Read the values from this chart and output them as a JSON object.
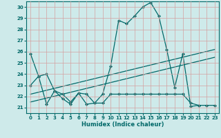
{
  "xlabel": "Humidex (Indice chaleur)",
  "bg_color": "#ceeaea",
  "grid_color": "#d4a0a0",
  "line_color": "#006868",
  "xlim": [
    -0.5,
    23.5
  ],
  "ylim": [
    20.5,
    30.5
  ],
  "yticks": [
    21,
    22,
    23,
    24,
    25,
    26,
    27,
    28,
    29,
    30
  ],
  "xticks": [
    0,
    1,
    2,
    3,
    4,
    5,
    6,
    7,
    8,
    9,
    10,
    11,
    12,
    13,
    14,
    15,
    16,
    17,
    18,
    19,
    20,
    21,
    22,
    23
  ],
  "line1_x": [
    0,
    1,
    2,
    3,
    4,
    5,
    6,
    7,
    8,
    9,
    10,
    11,
    12,
    13,
    14,
    15,
    16,
    17,
    18,
    19,
    20,
    21
  ],
  "line1_y": [
    25.8,
    23.8,
    21.3,
    22.5,
    21.8,
    21.3,
    22.3,
    21.3,
    21.4,
    22.2,
    24.7,
    28.8,
    28.5,
    29.2,
    30.0,
    30.4,
    29.2,
    26.2,
    22.8,
    25.8,
    21.1,
    21.2
  ],
  "line2_x": [
    0,
    1,
    2,
    3,
    4,
    5,
    6,
    7,
    8,
    9,
    10,
    11,
    12,
    13,
    14,
    15,
    16,
    17,
    18,
    19,
    20,
    21,
    22,
    23
  ],
  "line2_y": [
    23.0,
    23.8,
    24.0,
    22.5,
    22.2,
    21.5,
    22.3,
    22.2,
    21.4,
    21.4,
    22.2,
    22.2,
    22.2,
    22.2,
    22.2,
    22.2,
    22.2,
    22.2,
    22.2,
    22.2,
    21.4,
    21.2,
    21.2,
    21.2
  ],
  "line3_x": [
    0,
    23
  ],
  "line3_y": [
    22.2,
    26.2
  ],
  "line4_x": [
    0,
    23
  ],
  "line4_y": [
    21.5,
    25.5
  ],
  "markersize": 2.0,
  "linewidth": 0.9,
  "tick_fontsize": 5,
  "xlabel_fontsize": 6,
  "spine_color": "#006868"
}
